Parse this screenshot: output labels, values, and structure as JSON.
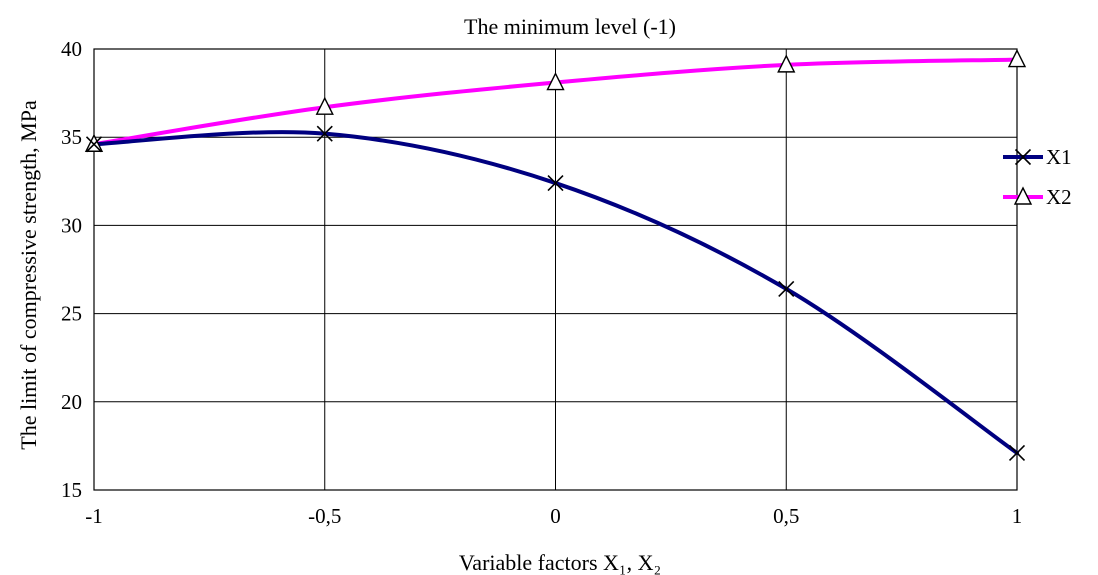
{
  "chart_data": {
    "type": "line",
    "title": "The minimum level (-1)",
    "xlabel": "Variable factors  X₁, X₂",
    "ylabel": "The limit of compressive strength, MPa",
    "x": [
      -1,
      -0.5,
      0,
      0.5,
      1
    ],
    "x_tick_labels": [
      "-1",
      "-0,5",
      "0",
      "0,5",
      "1"
    ],
    "y_tick_labels": [
      "15",
      "20",
      "25",
      "30",
      "35",
      "40"
    ],
    "y_ticks": [
      15,
      20,
      25,
      30,
      35,
      40
    ],
    "xlim": [
      -1,
      1
    ],
    "ylim": [
      15,
      40
    ],
    "grid": true,
    "legend_position": "right",
    "series": [
      {
        "name": "X1",
        "values": [
          34.6,
          35.2,
          32.4,
          26.4,
          17.1
        ],
        "color": "#000080",
        "marker": "x-cross"
      },
      {
        "name": "X2",
        "values": [
          34.6,
          36.7,
          38.1,
          39.1,
          39.4
        ],
        "color": "#ff00ff",
        "marker": "triangle"
      }
    ]
  }
}
